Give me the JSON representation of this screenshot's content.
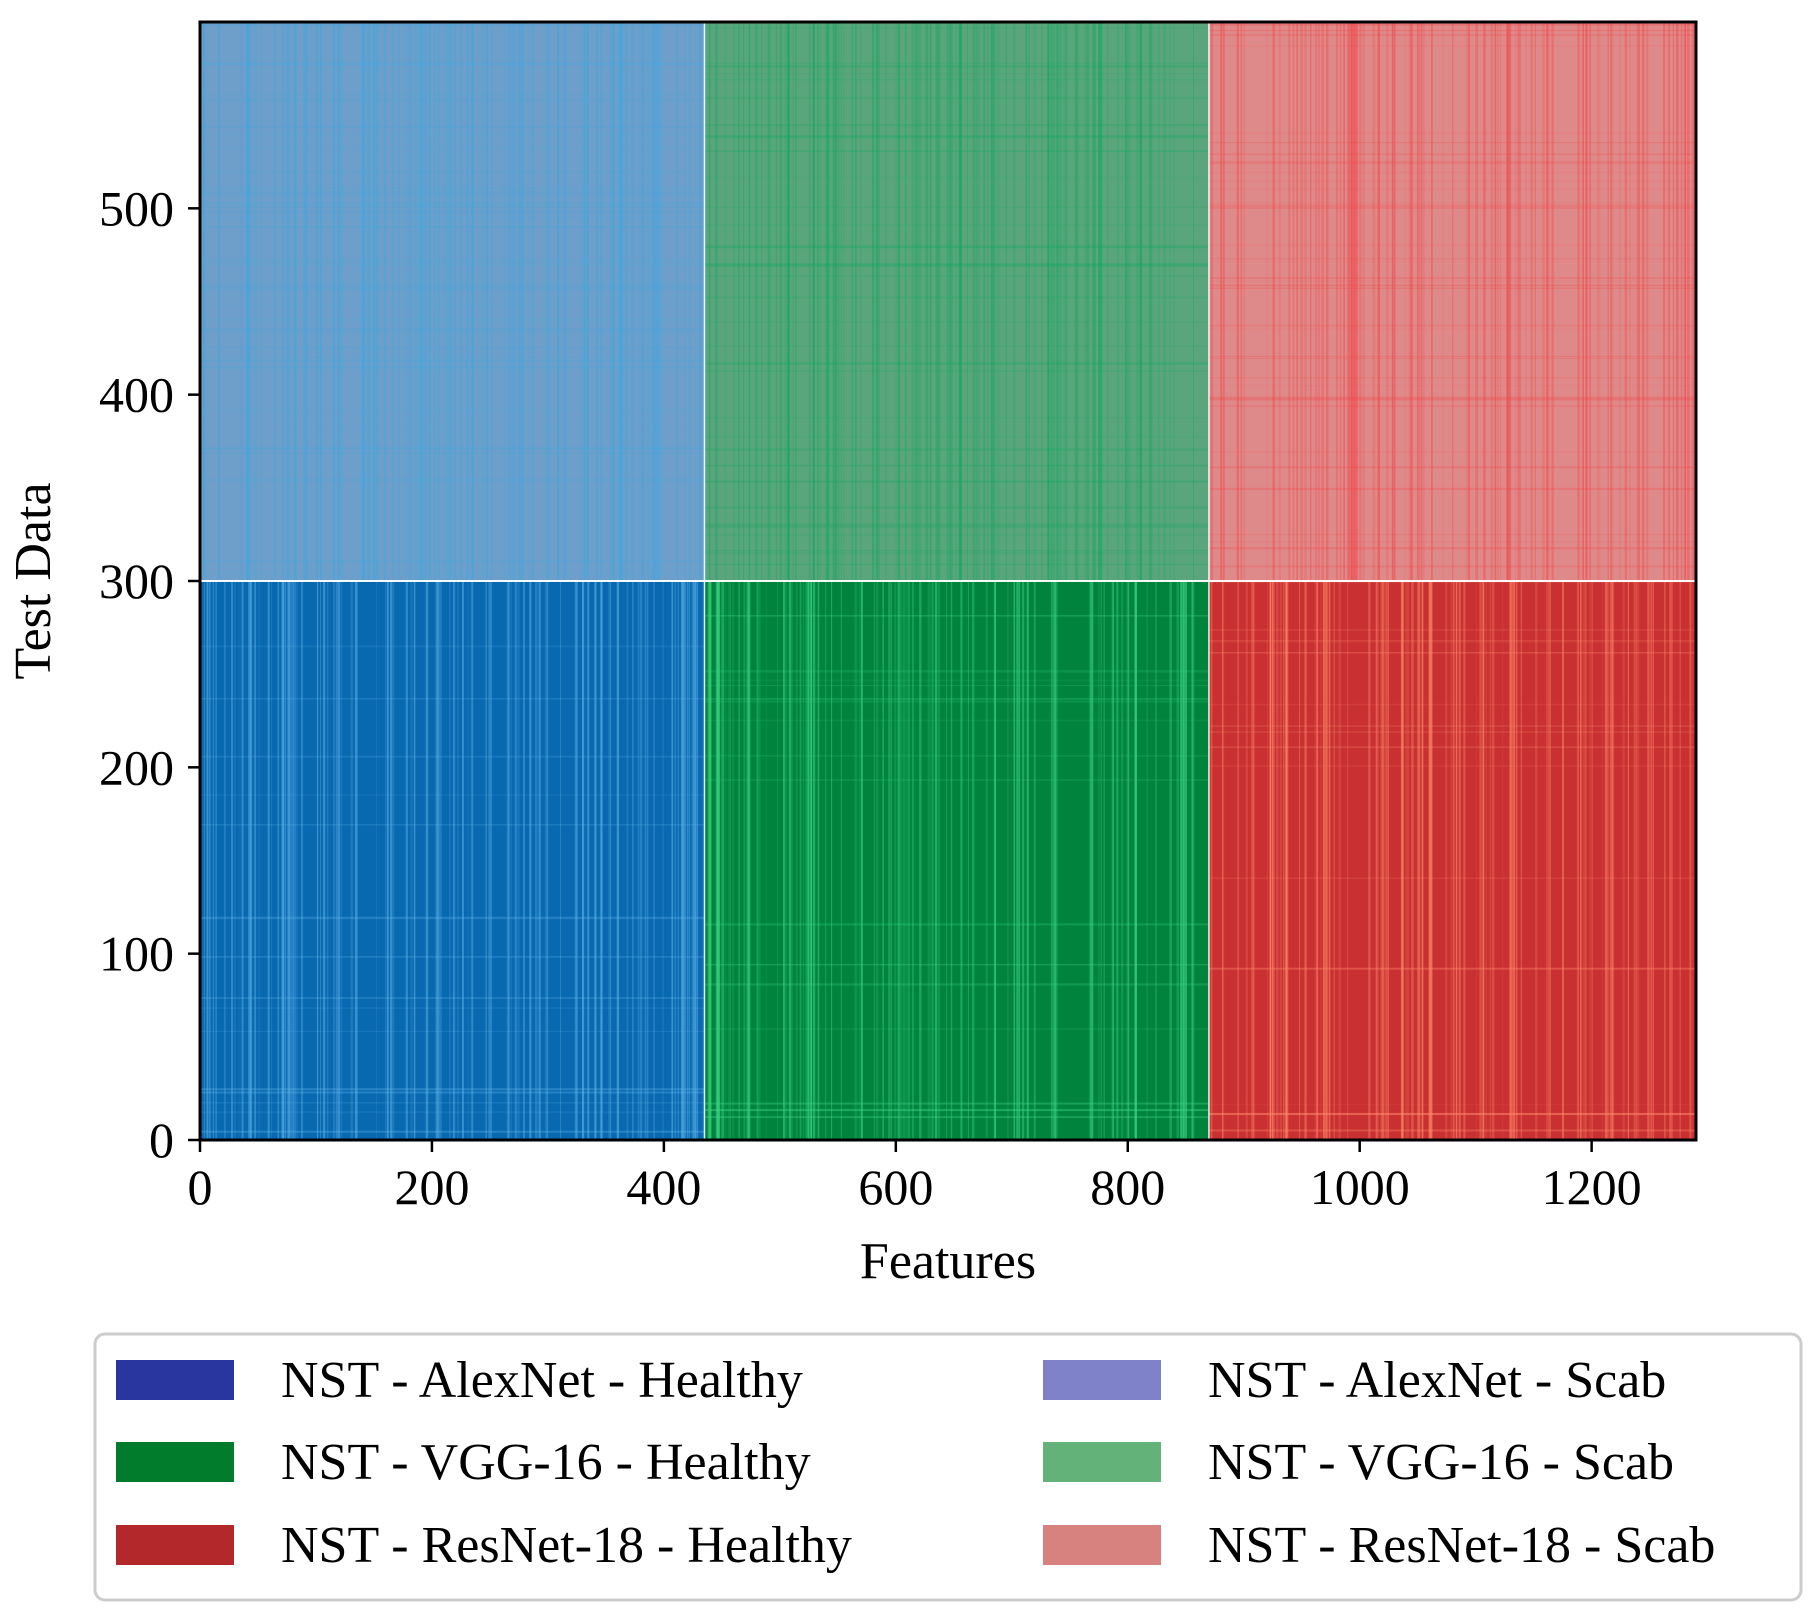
{
  "chart_data": {
    "type": "heatmap",
    "title": "",
    "xlabel": "Features",
    "ylabel": "Test Data",
    "xlim": [
      0,
      1290
    ],
    "ylim": [
      0,
      600
    ],
    "x_ticks": [
      0,
      200,
      400,
      600,
      800,
      1000,
      1200
    ],
    "y_ticks": [
      0,
      100,
      200,
      300,
      400,
      500
    ],
    "x_tick_labels": [
      "0",
      "200",
      "400",
      "600",
      "800",
      "1000",
      "1200"
    ],
    "y_tick_labels": [
      "0",
      "100",
      "200",
      "300",
      "400",
      "500"
    ],
    "blocks": [
      {
        "name": "NST - AlexNet - Healthy",
        "x_range": [
          0,
          435
        ],
        "y_range": [
          0,
          300
        ],
        "base_color": "#0868b0",
        "stripe_color": "#5fb4e8"
      },
      {
        "name": "NST - VGG-16 - Healthy",
        "x_range": [
          435,
          870
        ],
        "y_range": [
          0,
          300
        ],
        "base_color": "#00843d",
        "stripe_color": "#3fd88a"
      },
      {
        "name": "NST - ResNet-18 - Healthy",
        "x_range": [
          870,
          1290
        ],
        "y_range": [
          0,
          300
        ],
        "base_color": "#c93032",
        "stripe_color": "#ff8a6a"
      },
      {
        "name": "NST - AlexNet - Scab",
        "x_range": [
          0,
          435
        ],
        "y_range": [
          300,
          600
        ],
        "base_color": "#6e9fca",
        "stripe_color": "#3aa8e0"
      },
      {
        "name": "NST - VGG-16 - Scab",
        "x_range": [
          435,
          870
        ],
        "y_range": [
          300,
          600
        ],
        "base_color": "#5aa57c",
        "stripe_color": "#11a860"
      },
      {
        "name": "NST - ResNet-18 - Scab",
        "x_range": [
          870,
          1290
        ],
        "y_range": [
          300,
          600
        ],
        "base_color": "#df8a8a",
        "stripe_color": "#f24a4a"
      }
    ],
    "legend": {
      "position": "bottom",
      "columns": 2,
      "entries": [
        {
          "label": "NST - AlexNet - Healthy",
          "color": "#2a36a0"
        },
        {
          "label": "NST - VGG-16 - Healthy",
          "color": "#007c2c"
        },
        {
          "label": "NST - ResNet-18 - Healthy",
          "color": "#b3282a"
        },
        {
          "label": "NST - AlexNet - Scab",
          "color": "#7f82c8"
        },
        {
          "label": "NST - VGG-16 - Scab",
          "color": "#62b27a"
        },
        {
          "label": "NST - ResNet-18 - Scab",
          "color": "#d8827f"
        }
      ]
    }
  }
}
